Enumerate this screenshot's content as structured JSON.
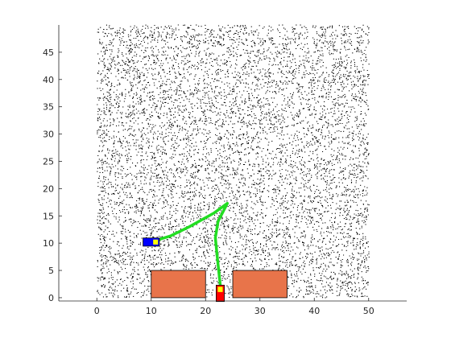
{
  "chart_data": {
    "type": "scatter",
    "title": "",
    "xlabel": "",
    "ylabel": "",
    "xlim": [
      -7,
      57
    ],
    "ylim": [
      -0.6,
      50
    ],
    "x_ticks": [
      0,
      10,
      20,
      30,
      40,
      50
    ],
    "y_ticks": [
      0,
      5,
      10,
      15,
      20,
      25,
      30,
      35,
      40,
      45
    ],
    "x_tick_labels": [
      "0",
      "10",
      "20",
      "30",
      "40",
      "50"
    ],
    "y_tick_labels": [
      "0",
      "5",
      "10",
      "15",
      "20",
      "25",
      "30",
      "35",
      "40",
      "45"
    ],
    "grid": false,
    "box": false,
    "samples": {
      "x_range": [
        0,
        50
      ],
      "y_range": [
        0,
        50
      ],
      "approx_count": 13000,
      "color": "#000000",
      "excluded_regions": [
        {
          "x": [
            10,
            20
          ],
          "y": [
            0,
            5
          ]
        },
        {
          "x": [
            25,
            35
          ],
          "y": [
            0,
            5
          ]
        },
        {
          "x": [
            21.5,
            23.5
          ],
          "y": [
            0,
            2.5
          ]
        }
      ]
    },
    "obstacles": [
      {
        "x": [
          10,
          20
        ],
        "y": [
          0,
          5
        ],
        "fill": "#e8744a",
        "edge": "#000000"
      },
      {
        "x": [
          25,
          35
        ],
        "y": [
          0,
          5
        ],
        "fill": "#e8744a",
        "edge": "#000000"
      }
    ],
    "path": {
      "color": "#22dd22",
      "points": [
        [
          22.7,
          2.3
        ],
        [
          22.2,
          7
        ],
        [
          21.8,
          11
        ],
        [
          22.3,
          14
        ],
        [
          24,
          17.3
        ],
        [
          21.5,
          15.5
        ],
        [
          17,
          13
        ],
        [
          13.5,
          11.3
        ],
        [
          10.5,
          10.4
        ],
        [
          9.8,
          10.2
        ]
      ]
    },
    "start_vehicle": {
      "x": 22.7,
      "y": 0.8,
      "width": 1.5,
      "height": 3,
      "body_color": "#ff0000",
      "accent_color": "#ffff00"
    },
    "goal_vehicle": {
      "x": 10,
      "y": 10.2,
      "width": 3,
      "height": 1.5,
      "body_color": "#0000ff",
      "accent_color": "#ffff00"
    }
  }
}
